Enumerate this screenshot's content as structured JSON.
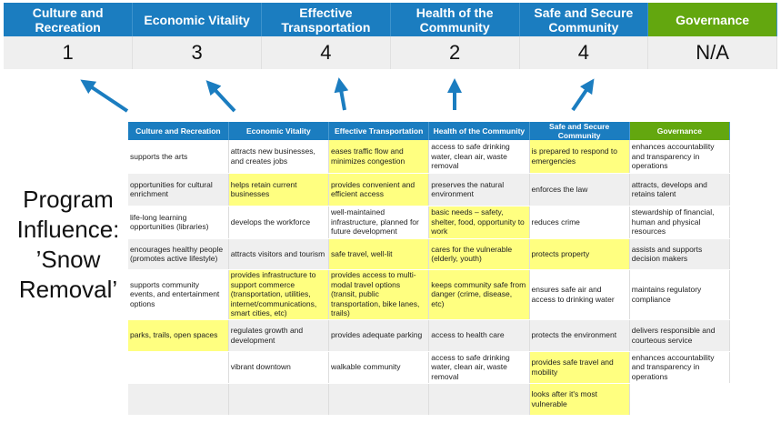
{
  "scores": {
    "headers": [
      "Culture and Recreation",
      "Economic Vitality",
      "Effective Transportation",
      "Health of the Community",
      "Safe and Secure Community",
      "Governance"
    ],
    "values": [
      "1",
      "3",
      "4",
      "2",
      "4",
      "N/A"
    ]
  },
  "program_label": [
    "Program",
    "Influence:",
    "’Snow",
    "Removal’"
  ],
  "colors": {
    "header_blue": "#1b7dc0",
    "governance_green": "#63a70f",
    "highlight_yellow": "#ffff80"
  },
  "grid": {
    "headers": [
      "Culture and Recreation",
      "Economic Vitality",
      "Effective Transportation",
      "Health of the Community",
      "Safe and Secure Community",
      "Governance"
    ],
    "rows": [
      [
        {
          "t": "supports the arts"
        },
        {
          "t": "attracts new businesses, and creates jobs"
        },
        {
          "t": "eases traffic flow and minimizes congestion",
          "h": true
        },
        {
          "t": "access to safe drinking water, clean air, waste removal"
        },
        {
          "t": "is prepared to respond to emergencies",
          "h": true
        },
        {
          "t": "enhances accountability and transparency in operations"
        }
      ],
      [
        {
          "t": "opportunities for cultural enrichment"
        },
        {
          "t": "helps retain current businesses",
          "h": true
        },
        {
          "t": "provides convenient and efficient access",
          "h": true
        },
        {
          "t": "preserves the natural environment"
        },
        {
          "t": "enforces the law"
        },
        {
          "t": "attracts, develops and retains talent"
        }
      ],
      [
        {
          "t": "life-long learning opportunities (libraries)"
        },
        {
          "t": "develops the workforce"
        },
        {
          "t": "well-maintained infrastructure, planned for future development"
        },
        {
          "t": "basic needs – safety, shelter, food, opportunity to work",
          "h": true
        },
        {
          "t": "reduces crime"
        },
        {
          "t": "stewardship of financial, human and physical resources"
        }
      ],
      [
        {
          "t": "encourages healthy people (promotes active lifestyle)"
        },
        {
          "t": "attracts visitors and tourism"
        },
        {
          "t": "safe travel, well-lit",
          "h": true
        },
        {
          "t": "cares for the vulnerable (elderly, youth)",
          "h": true
        },
        {
          "t": "protects property",
          "h": true
        },
        {
          "t": "assists and supports decision makers"
        }
      ],
      [
        {
          "t": "supports community events, and entertainment options"
        },
        {
          "t": "provides infrastructure to support commerce (transportation, utilities, internet/communications, smart cities, etc)",
          "h": true
        },
        {
          "t": "provides access to multi-modal travel options (transit, public transportation, bike lanes, trails)",
          "h": true
        },
        {
          "t": "keeps community safe from danger (crime, disease, etc)",
          "h": true
        },
        {
          "t": "ensures safe air and access to drinking water"
        },
        {
          "t": "maintains regulatory compliance"
        }
      ],
      [
        {
          "t": "parks, trails, open spaces",
          "h": true
        },
        {
          "t": "regulates growth and development"
        },
        {
          "t": "provides adequate parking"
        },
        {
          "t": "access to health care"
        },
        {
          "t": "protects the environment"
        },
        {
          "t": "delivers responsible and courteous service"
        }
      ],
      [
        {
          "t": ""
        },
        {
          "t": "vibrant downtown"
        },
        {
          "t": "walkable community"
        },
        {
          "t": "access to safe drinking water, clean air, waste removal"
        },
        {
          "t": "provides safe travel and mobility",
          "h": true
        },
        {
          "t": "enhances accountability and transparency in operations"
        }
      ],
      [
        {
          "t": ""
        },
        {
          "t": ""
        },
        {
          "t": ""
        },
        {
          "t": ""
        },
        {
          "t": "looks after it's most vulnerable",
          "h": true
        },
        {
          "t": "",
          "b": true
        }
      ]
    ]
  }
}
